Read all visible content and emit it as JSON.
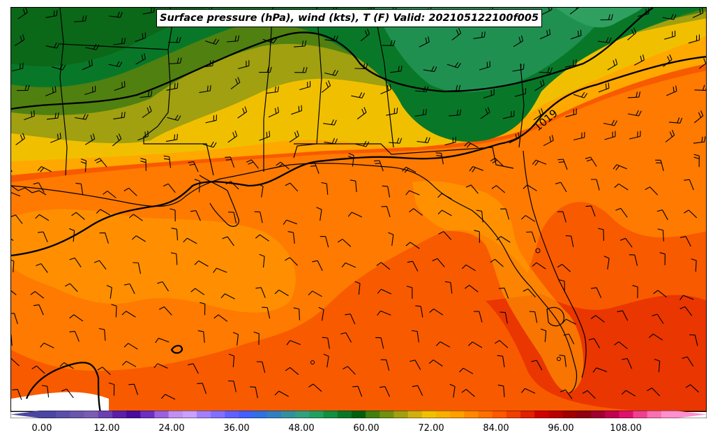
{
  "title": "Surface pressure (hPa), wind (kts), T (F) Valid: 202105122100f005",
  "colorbar": {
    "tick_labels": [
      "0.00",
      "12.00",
      "24.00",
      "36.00",
      "48.00",
      "60.00",
      "72.00",
      "84.00",
      "96.00",
      "108.00"
    ],
    "colors": [
      "#4a47a3",
      "#5a4fa8",
      "#6a56ad",
      "#7a5db2",
      "#6b3fb0",
      "#5a1fa8",
      "#4a0aa0",
      "#6a30c0",
      "#9a60e0",
      "#c090f0",
      "#c8a0ff",
      "#a080ff",
      "#8070ff",
      "#6060ff",
      "#4060ff",
      "#3070e0",
      "#3080c0",
      "#3090a0",
      "#30a080",
      "#20a060",
      "#109040",
      "#087828",
      "#006010",
      "#408010",
      "#709010",
      "#a0a010",
      "#d0b010",
      "#f0c000",
      "#f8b000",
      "#ffa000",
      "#ff8800",
      "#ff7000",
      "#ff5800",
      "#f04000",
      "#e02000",
      "#d00000",
      "#b80000",
      "#a00000",
      "#900010",
      "#a00030",
      "#c00050",
      "#e01070",
      "#f04090",
      "#f870b0",
      "#ff90d0"
    ]
  },
  "map_legend": {
    "isobar_label": "1019"
  },
  "colors": {
    "frame": "#000000",
    "isobar": "#000000"
  }
}
